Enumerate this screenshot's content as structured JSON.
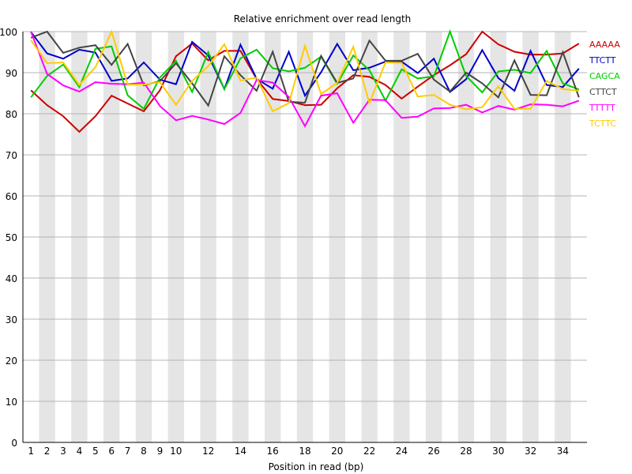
{
  "chart_data": {
    "type": "line",
    "title": "Relative enrichment over read length",
    "xlabel": "Position in read (bp)",
    "ylabel": "",
    "xlim": [
      1,
      35
    ],
    "ylim": [
      0,
      100
    ],
    "x_ticks": [
      1,
      2,
      3,
      4,
      5,
      6,
      7,
      8,
      9,
      10,
      12,
      14,
      16,
      18,
      20,
      22,
      24,
      26,
      28,
      30,
      32,
      34
    ],
    "y_ticks": [
      0,
      10,
      20,
      30,
      40,
      50,
      60,
      70,
      80,
      90,
      100
    ],
    "grid": "horizontal lines with alternating vertical bands",
    "legend_position": "top-right",
    "x": [
      1,
      2,
      3,
      4,
      5,
      6,
      7,
      8,
      9,
      10,
      11,
      12,
      13,
      14,
      15,
      16,
      17,
      18,
      19,
      20,
      21,
      22,
      23,
      24,
      25,
      26,
      27,
      28,
      29,
      30,
      31,
      32,
      33,
      34,
      35
    ],
    "series": [
      {
        "name": "AAAAA",
        "color": "#cc0000",
        "values": [
          85.7,
          82.1,
          79.4,
          75.6,
          79.4,
          84.4,
          82.5,
          80.6,
          85.7,
          94.0,
          97.1,
          93.0,
          95.3,
          95.3,
          88.5,
          83.6,
          83.1,
          82.1,
          82.2,
          86.2,
          89.4,
          89.0,
          87.0,
          83.7,
          86.6,
          89.4,
          91.8,
          94.5,
          100.0,
          96.9,
          95.1,
          94.4,
          94.4,
          94.7,
          97.1
        ]
      },
      {
        "name": "TTCTT",
        "color": "#0000cc",
        "values": [
          99.9,
          94.7,
          93.4,
          95.6,
          94.9,
          88.0,
          88.6,
          92.5,
          88.3,
          87.2,
          97.5,
          94.2,
          86.0,
          96.8,
          88.5,
          86.1,
          95.1,
          84.4,
          90.1,
          97.0,
          90.6,
          91.2,
          92.7,
          92.7,
          89.9,
          93.4,
          85.3,
          88.4,
          95.5,
          88.7,
          85.6,
          95.3,
          87.0,
          86.5,
          91.0
        ]
      },
      {
        "name": "CAGCA",
        "color": "#00cc00",
        "values": [
          84.0,
          89.2,
          92.0,
          86.5,
          95.8,
          96.4,
          84.5,
          81.2,
          88.8,
          92.9,
          85.3,
          95.0,
          86.0,
          93.5,
          95.6,
          91.1,
          90.3,
          91.2,
          93.9,
          87.3,
          94.2,
          90.6,
          83.2,
          90.8,
          88.6,
          89.1,
          100.0,
          89.2,
          85.2,
          90.3,
          90.7,
          89.9,
          95.3,
          87.4,
          85.9
        ]
      },
      {
        "name": "CTTCT",
        "color": "#444444",
        "values": [
          98.5,
          100.0,
          94.8,
          96.1,
          96.7,
          91.9,
          97.0,
          86.9,
          87.9,
          92.3,
          87.4,
          82.0,
          94.0,
          89.4,
          85.6,
          95.1,
          82.9,
          82.7,
          94.1,
          87.5,
          88.6,
          97.8,
          92.9,
          92.9,
          94.6,
          88.3,
          85.4,
          90.0,
          87.4,
          84.0,
          93.0,
          84.6,
          84.5,
          95.0,
          84.0
        ]
      },
      {
        "name": "TTTTT",
        "color": "#ff00ff",
        "values": [
          100.0,
          89.7,
          86.9,
          85.4,
          87.7,
          87.3,
          87.2,
          87.6,
          81.9,
          78.4,
          79.5,
          78.6,
          77.5,
          80.2,
          88.2,
          87.6,
          84.1,
          77.0,
          84.4,
          85.0,
          77.8,
          83.4,
          83.3,
          79.0,
          79.3,
          81.3,
          81.4,
          82.2,
          80.3,
          81.9,
          81.0,
          82.3,
          82.2,
          81.8,
          83.2
        ]
      },
      {
        "name": "TCTTC",
        "color": "#ffcc00",
        "values": [
          97.9,
          92.3,
          92.5,
          87.0,
          91.3,
          100.0,
          87.1,
          87.1,
          87.7,
          82.2,
          88.0,
          91.6,
          96.9,
          88.1,
          88.8,
          80.6,
          82.6,
          96.5,
          84.8,
          87.5,
          96.3,
          82.6,
          92.5,
          92.4,
          84.2,
          84.6,
          82.2,
          81.1,
          81.6,
          86.7,
          81.2,
          81.2,
          88.0,
          86.0,
          85.6
        ]
      }
    ]
  }
}
